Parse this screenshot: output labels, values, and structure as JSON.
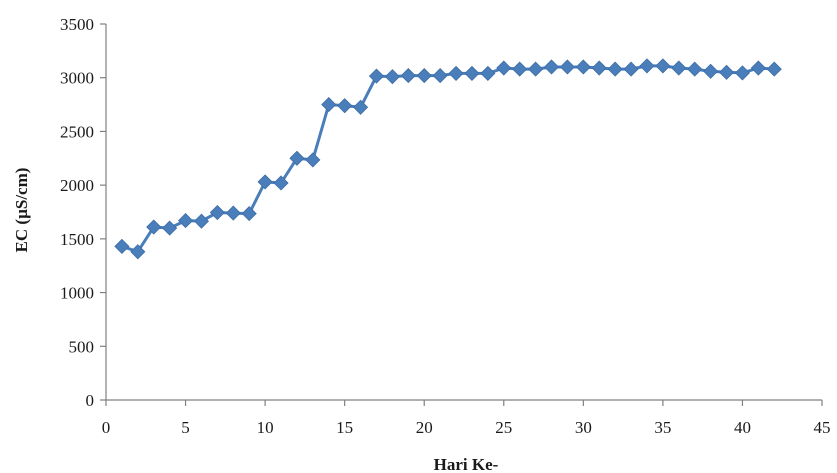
{
  "chart_data": {
    "type": "line",
    "title": "",
    "xlabel": "Hari Ke-",
    "ylabel": "EC (µS/cm)",
    "xlim": [
      0,
      45
    ],
    "ylim": [
      0,
      3500
    ],
    "xticks": [
      0,
      5,
      10,
      15,
      20,
      25,
      30,
      35,
      40,
      45
    ],
    "yticks": [
      0,
      500,
      1000,
      1500,
      2000,
      2500,
      3000,
      3500
    ],
    "grid": false,
    "legend": "none",
    "colors": {
      "series": "#4a7ebb",
      "axis": "#808080"
    },
    "marker": "diamond",
    "series": [
      {
        "x": [
          1,
          2,
          3,
          4,
          5,
          6,
          7,
          8,
          9,
          10,
          11,
          12,
          13,
          14,
          15,
          16,
          17,
          18,
          19,
          20,
          21,
          22,
          23,
          24,
          25,
          26,
          27,
          28,
          29,
          30,
          31,
          32,
          33,
          34,
          35,
          36,
          37,
          38,
          39,
          40,
          41,
          42
        ],
        "values": [
          1430,
          1380,
          1610,
          1600,
          1670,
          1665,
          1745,
          1740,
          1735,
          2030,
          2020,
          2250,
          2235,
          2750,
          2740,
          2725,
          3015,
          3010,
          3020,
          3020,
          3020,
          3040,
          3040,
          3040,
          3090,
          3080,
          3080,
          3100,
          3100,
          3100,
          3090,
          3080,
          3080,
          3110,
          3110,
          3090,
          3080,
          3060,
          3050,
          3045,
          3090,
          3080
        ]
      }
    ]
  }
}
